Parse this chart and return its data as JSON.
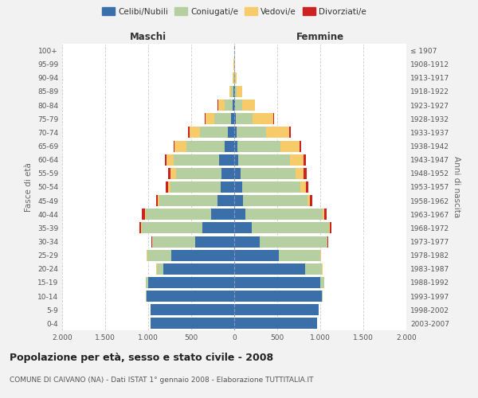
{
  "age_groups": [
    "0-4",
    "5-9",
    "10-14",
    "15-19",
    "20-24",
    "25-29",
    "30-34",
    "35-39",
    "40-44",
    "45-49",
    "50-54",
    "55-59",
    "60-64",
    "65-69",
    "70-74",
    "75-79",
    "80-84",
    "85-89",
    "90-94",
    "95-99",
    "100+"
  ],
  "birth_years": [
    "2003-2007",
    "1998-2002",
    "1993-1997",
    "1988-1992",
    "1983-1987",
    "1978-1982",
    "1973-1977",
    "1968-1972",
    "1963-1967",
    "1958-1962",
    "1953-1957",
    "1948-1952",
    "1943-1947",
    "1938-1942",
    "1933-1937",
    "1928-1932",
    "1923-1927",
    "1918-1922",
    "1913-1917",
    "1908-1912",
    "≤ 1907"
  ],
  "colors": {
    "celibe": "#3b6faa",
    "coniugato": "#b5cfa0",
    "vedovo": "#f7ca6a",
    "divorziato": "#cc2222"
  },
  "males": {
    "celibe": [
      970,
      970,
      1020,
      1000,
      820,
      730,
      450,
      370,
      270,
      190,
      160,
      150,
      180,
      110,
      70,
      35,
      15,
      5,
      2,
      0,
      0
    ],
    "coniugato": [
      0,
      0,
      5,
      30,
      80,
      280,
      500,
      700,
      760,
      680,
      580,
      530,
      520,
      450,
      330,
      200,
      100,
      30,
      8,
      2,
      0
    ],
    "vedovo": [
      0,
      0,
      0,
      0,
      5,
      5,
      5,
      10,
      10,
      15,
      30,
      60,
      90,
      130,
      120,
      100,
      70,
      25,
      8,
      3,
      0
    ],
    "divorziato": [
      0,
      0,
      0,
      0,
      5,
      5,
      10,
      20,
      30,
      20,
      25,
      25,
      20,
      15,
      15,
      10,
      5,
      0,
      0,
      0,
      0
    ]
  },
  "females": {
    "celibe": [
      960,
      980,
      1020,
      1000,
      820,
      520,
      300,
      200,
      130,
      100,
      90,
      70,
      50,
      40,
      30,
      20,
      10,
      5,
      2,
      0,
      0
    ],
    "coniugato": [
      0,
      0,
      10,
      50,
      200,
      480,
      780,
      900,
      900,
      750,
      680,
      640,
      600,
      500,
      340,
      190,
      80,
      25,
      8,
      2,
      0
    ],
    "vedovo": [
      0,
      0,
      0,
      0,
      5,
      5,
      5,
      10,
      15,
      30,
      60,
      100,
      160,
      220,
      270,
      240,
      150,
      60,
      20,
      5,
      2
    ],
    "divorziato": [
      0,
      0,
      0,
      0,
      5,
      5,
      10,
      20,
      30,
      25,
      30,
      30,
      25,
      20,
      15,
      10,
      0,
      0,
      0,
      0,
      0
    ]
  },
  "title": "Popolazione per età, sesso e stato civile - 2008",
  "subtitle": "COMUNE DI CAIVANO (NA) - Dati ISTAT 1° gennaio 2008 - Elaborazione TUTTITALIA.IT",
  "xlabel_left": "Maschi",
  "xlabel_right": "Femmine",
  "ylabel_left": "Fasce di età",
  "ylabel_right": "Anni di nascita",
  "xlim": 2000,
  "legend_labels": [
    "Celibi/Nubili",
    "Coniugati/e",
    "Vedovi/e",
    "Divorziati/e"
  ],
  "background_color": "#f2f2f2",
  "plot_bg": "#ffffff"
}
